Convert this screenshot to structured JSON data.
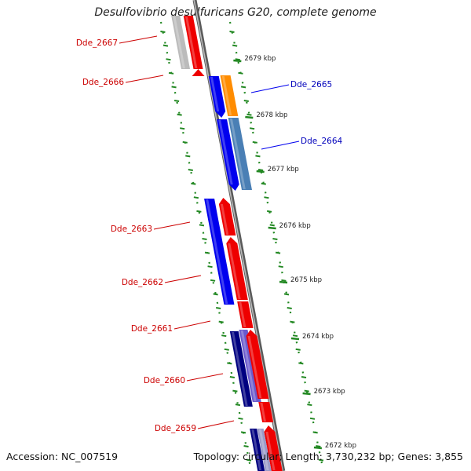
{
  "title": "Desulfovibrio desulfuricans G20, complete genome",
  "accession": "Accession: NC_007519",
  "topology": "Topology: circular; Length: 3,730,232 bp; Genes: 3,855",
  "colors": {
    "forward": "#ee0000",
    "reverse": "#0000ee",
    "forward_label": "#cc0000",
    "reverse_label": "#0000bb",
    "backbone": "#808080",
    "tick": "#228822",
    "gray_gene": "#bbbbbb",
    "orange_gene": "#ff8c00",
    "steelblue_gene": "#4a7fb5",
    "navy_gene": "#000080",
    "slate_gene": "#6a5acd"
  },
  "ruler_labels": [
    "2679 kbp",
    "2678 kbp",
    "2677 kbp",
    "2676 kbp",
    "2675 kbp",
    "2674 kbp",
    "2673 kbp",
    "2672 kbp"
  ],
  "gene_labels": [
    {
      "text": "Dde_2667",
      "strand": "forward"
    },
    {
      "text": "Dde_2666",
      "strand": "forward"
    },
    {
      "text": "Dde_2665",
      "strand": "reverse"
    },
    {
      "text": "Dde_2664",
      "strand": "reverse"
    },
    {
      "text": "Dde_2663",
      "strand": "forward"
    },
    {
      "text": "Dde_2662",
      "strand": "forward"
    },
    {
      "text": "Dde_2661",
      "strand": "forward"
    },
    {
      "text": "Dde_2660",
      "strand": "forward"
    },
    {
      "text": "Dde_2659",
      "strand": "forward"
    }
  ]
}
